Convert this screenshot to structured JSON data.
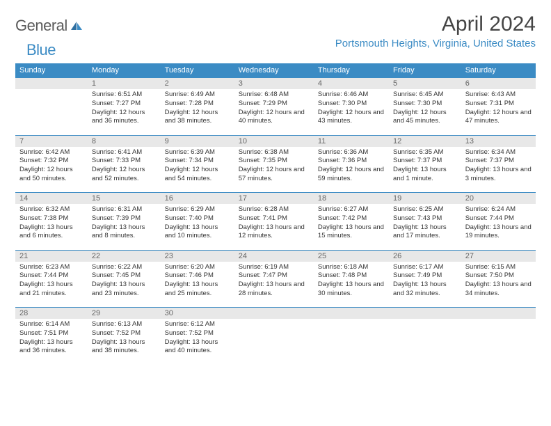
{
  "brand": {
    "part1": "General",
    "part2": "Blue"
  },
  "title": "April 2024",
  "location": "Portsmouth Heights, Virginia, United States",
  "colors": {
    "header_bg": "#3b8bc4",
    "header_text": "#ffffff",
    "daynum_bg": "#e8e8e8",
    "daynum_text": "#666666",
    "body_text": "#333333",
    "rule": "#3b8bc4",
    "title_text": "#454545",
    "location_text": "#3b8bc4",
    "page_bg": "#ffffff"
  },
  "typography": {
    "title_fontsize": 30,
    "location_fontsize": 15,
    "dayhead_fontsize": 11,
    "daynum_fontsize": 11,
    "cell_fontsize": 9.5
  },
  "day_headers": [
    "Sunday",
    "Monday",
    "Tuesday",
    "Wednesday",
    "Thursday",
    "Friday",
    "Saturday"
  ],
  "weeks": [
    [
      {
        "n": "",
        "sr": "",
        "ss": "",
        "dl": ""
      },
      {
        "n": "1",
        "sr": "Sunrise: 6:51 AM",
        "ss": "Sunset: 7:27 PM",
        "dl": "Daylight: 12 hours and 36 minutes."
      },
      {
        "n": "2",
        "sr": "Sunrise: 6:49 AM",
        "ss": "Sunset: 7:28 PM",
        "dl": "Daylight: 12 hours and 38 minutes."
      },
      {
        "n": "3",
        "sr": "Sunrise: 6:48 AM",
        "ss": "Sunset: 7:29 PM",
        "dl": "Daylight: 12 hours and 40 minutes."
      },
      {
        "n": "4",
        "sr": "Sunrise: 6:46 AM",
        "ss": "Sunset: 7:30 PM",
        "dl": "Daylight: 12 hours and 43 minutes."
      },
      {
        "n": "5",
        "sr": "Sunrise: 6:45 AM",
        "ss": "Sunset: 7:30 PM",
        "dl": "Daylight: 12 hours and 45 minutes."
      },
      {
        "n": "6",
        "sr": "Sunrise: 6:43 AM",
        "ss": "Sunset: 7:31 PM",
        "dl": "Daylight: 12 hours and 47 minutes."
      }
    ],
    [
      {
        "n": "7",
        "sr": "Sunrise: 6:42 AM",
        "ss": "Sunset: 7:32 PM",
        "dl": "Daylight: 12 hours and 50 minutes."
      },
      {
        "n": "8",
        "sr": "Sunrise: 6:41 AM",
        "ss": "Sunset: 7:33 PM",
        "dl": "Daylight: 12 hours and 52 minutes."
      },
      {
        "n": "9",
        "sr": "Sunrise: 6:39 AM",
        "ss": "Sunset: 7:34 PM",
        "dl": "Daylight: 12 hours and 54 minutes."
      },
      {
        "n": "10",
        "sr": "Sunrise: 6:38 AM",
        "ss": "Sunset: 7:35 PM",
        "dl": "Daylight: 12 hours and 57 minutes."
      },
      {
        "n": "11",
        "sr": "Sunrise: 6:36 AM",
        "ss": "Sunset: 7:36 PM",
        "dl": "Daylight: 12 hours and 59 minutes."
      },
      {
        "n": "12",
        "sr": "Sunrise: 6:35 AM",
        "ss": "Sunset: 7:37 PM",
        "dl": "Daylight: 13 hours and 1 minute."
      },
      {
        "n": "13",
        "sr": "Sunrise: 6:34 AM",
        "ss": "Sunset: 7:37 PM",
        "dl": "Daylight: 13 hours and 3 minutes."
      }
    ],
    [
      {
        "n": "14",
        "sr": "Sunrise: 6:32 AM",
        "ss": "Sunset: 7:38 PM",
        "dl": "Daylight: 13 hours and 6 minutes."
      },
      {
        "n": "15",
        "sr": "Sunrise: 6:31 AM",
        "ss": "Sunset: 7:39 PM",
        "dl": "Daylight: 13 hours and 8 minutes."
      },
      {
        "n": "16",
        "sr": "Sunrise: 6:29 AM",
        "ss": "Sunset: 7:40 PM",
        "dl": "Daylight: 13 hours and 10 minutes."
      },
      {
        "n": "17",
        "sr": "Sunrise: 6:28 AM",
        "ss": "Sunset: 7:41 PM",
        "dl": "Daylight: 13 hours and 12 minutes."
      },
      {
        "n": "18",
        "sr": "Sunrise: 6:27 AM",
        "ss": "Sunset: 7:42 PM",
        "dl": "Daylight: 13 hours and 15 minutes."
      },
      {
        "n": "19",
        "sr": "Sunrise: 6:25 AM",
        "ss": "Sunset: 7:43 PM",
        "dl": "Daylight: 13 hours and 17 minutes."
      },
      {
        "n": "20",
        "sr": "Sunrise: 6:24 AM",
        "ss": "Sunset: 7:44 PM",
        "dl": "Daylight: 13 hours and 19 minutes."
      }
    ],
    [
      {
        "n": "21",
        "sr": "Sunrise: 6:23 AM",
        "ss": "Sunset: 7:44 PM",
        "dl": "Daylight: 13 hours and 21 minutes."
      },
      {
        "n": "22",
        "sr": "Sunrise: 6:22 AM",
        "ss": "Sunset: 7:45 PM",
        "dl": "Daylight: 13 hours and 23 minutes."
      },
      {
        "n": "23",
        "sr": "Sunrise: 6:20 AM",
        "ss": "Sunset: 7:46 PM",
        "dl": "Daylight: 13 hours and 25 minutes."
      },
      {
        "n": "24",
        "sr": "Sunrise: 6:19 AM",
        "ss": "Sunset: 7:47 PM",
        "dl": "Daylight: 13 hours and 28 minutes."
      },
      {
        "n": "25",
        "sr": "Sunrise: 6:18 AM",
        "ss": "Sunset: 7:48 PM",
        "dl": "Daylight: 13 hours and 30 minutes."
      },
      {
        "n": "26",
        "sr": "Sunrise: 6:17 AM",
        "ss": "Sunset: 7:49 PM",
        "dl": "Daylight: 13 hours and 32 minutes."
      },
      {
        "n": "27",
        "sr": "Sunrise: 6:15 AM",
        "ss": "Sunset: 7:50 PM",
        "dl": "Daylight: 13 hours and 34 minutes."
      }
    ],
    [
      {
        "n": "28",
        "sr": "Sunrise: 6:14 AM",
        "ss": "Sunset: 7:51 PM",
        "dl": "Daylight: 13 hours and 36 minutes."
      },
      {
        "n": "29",
        "sr": "Sunrise: 6:13 AM",
        "ss": "Sunset: 7:52 PM",
        "dl": "Daylight: 13 hours and 38 minutes."
      },
      {
        "n": "30",
        "sr": "Sunrise: 6:12 AM",
        "ss": "Sunset: 7:52 PM",
        "dl": "Daylight: 13 hours and 40 minutes."
      },
      {
        "n": "",
        "sr": "",
        "ss": "",
        "dl": ""
      },
      {
        "n": "",
        "sr": "",
        "ss": "",
        "dl": ""
      },
      {
        "n": "",
        "sr": "",
        "ss": "",
        "dl": ""
      },
      {
        "n": "",
        "sr": "",
        "ss": "",
        "dl": ""
      }
    ]
  ]
}
